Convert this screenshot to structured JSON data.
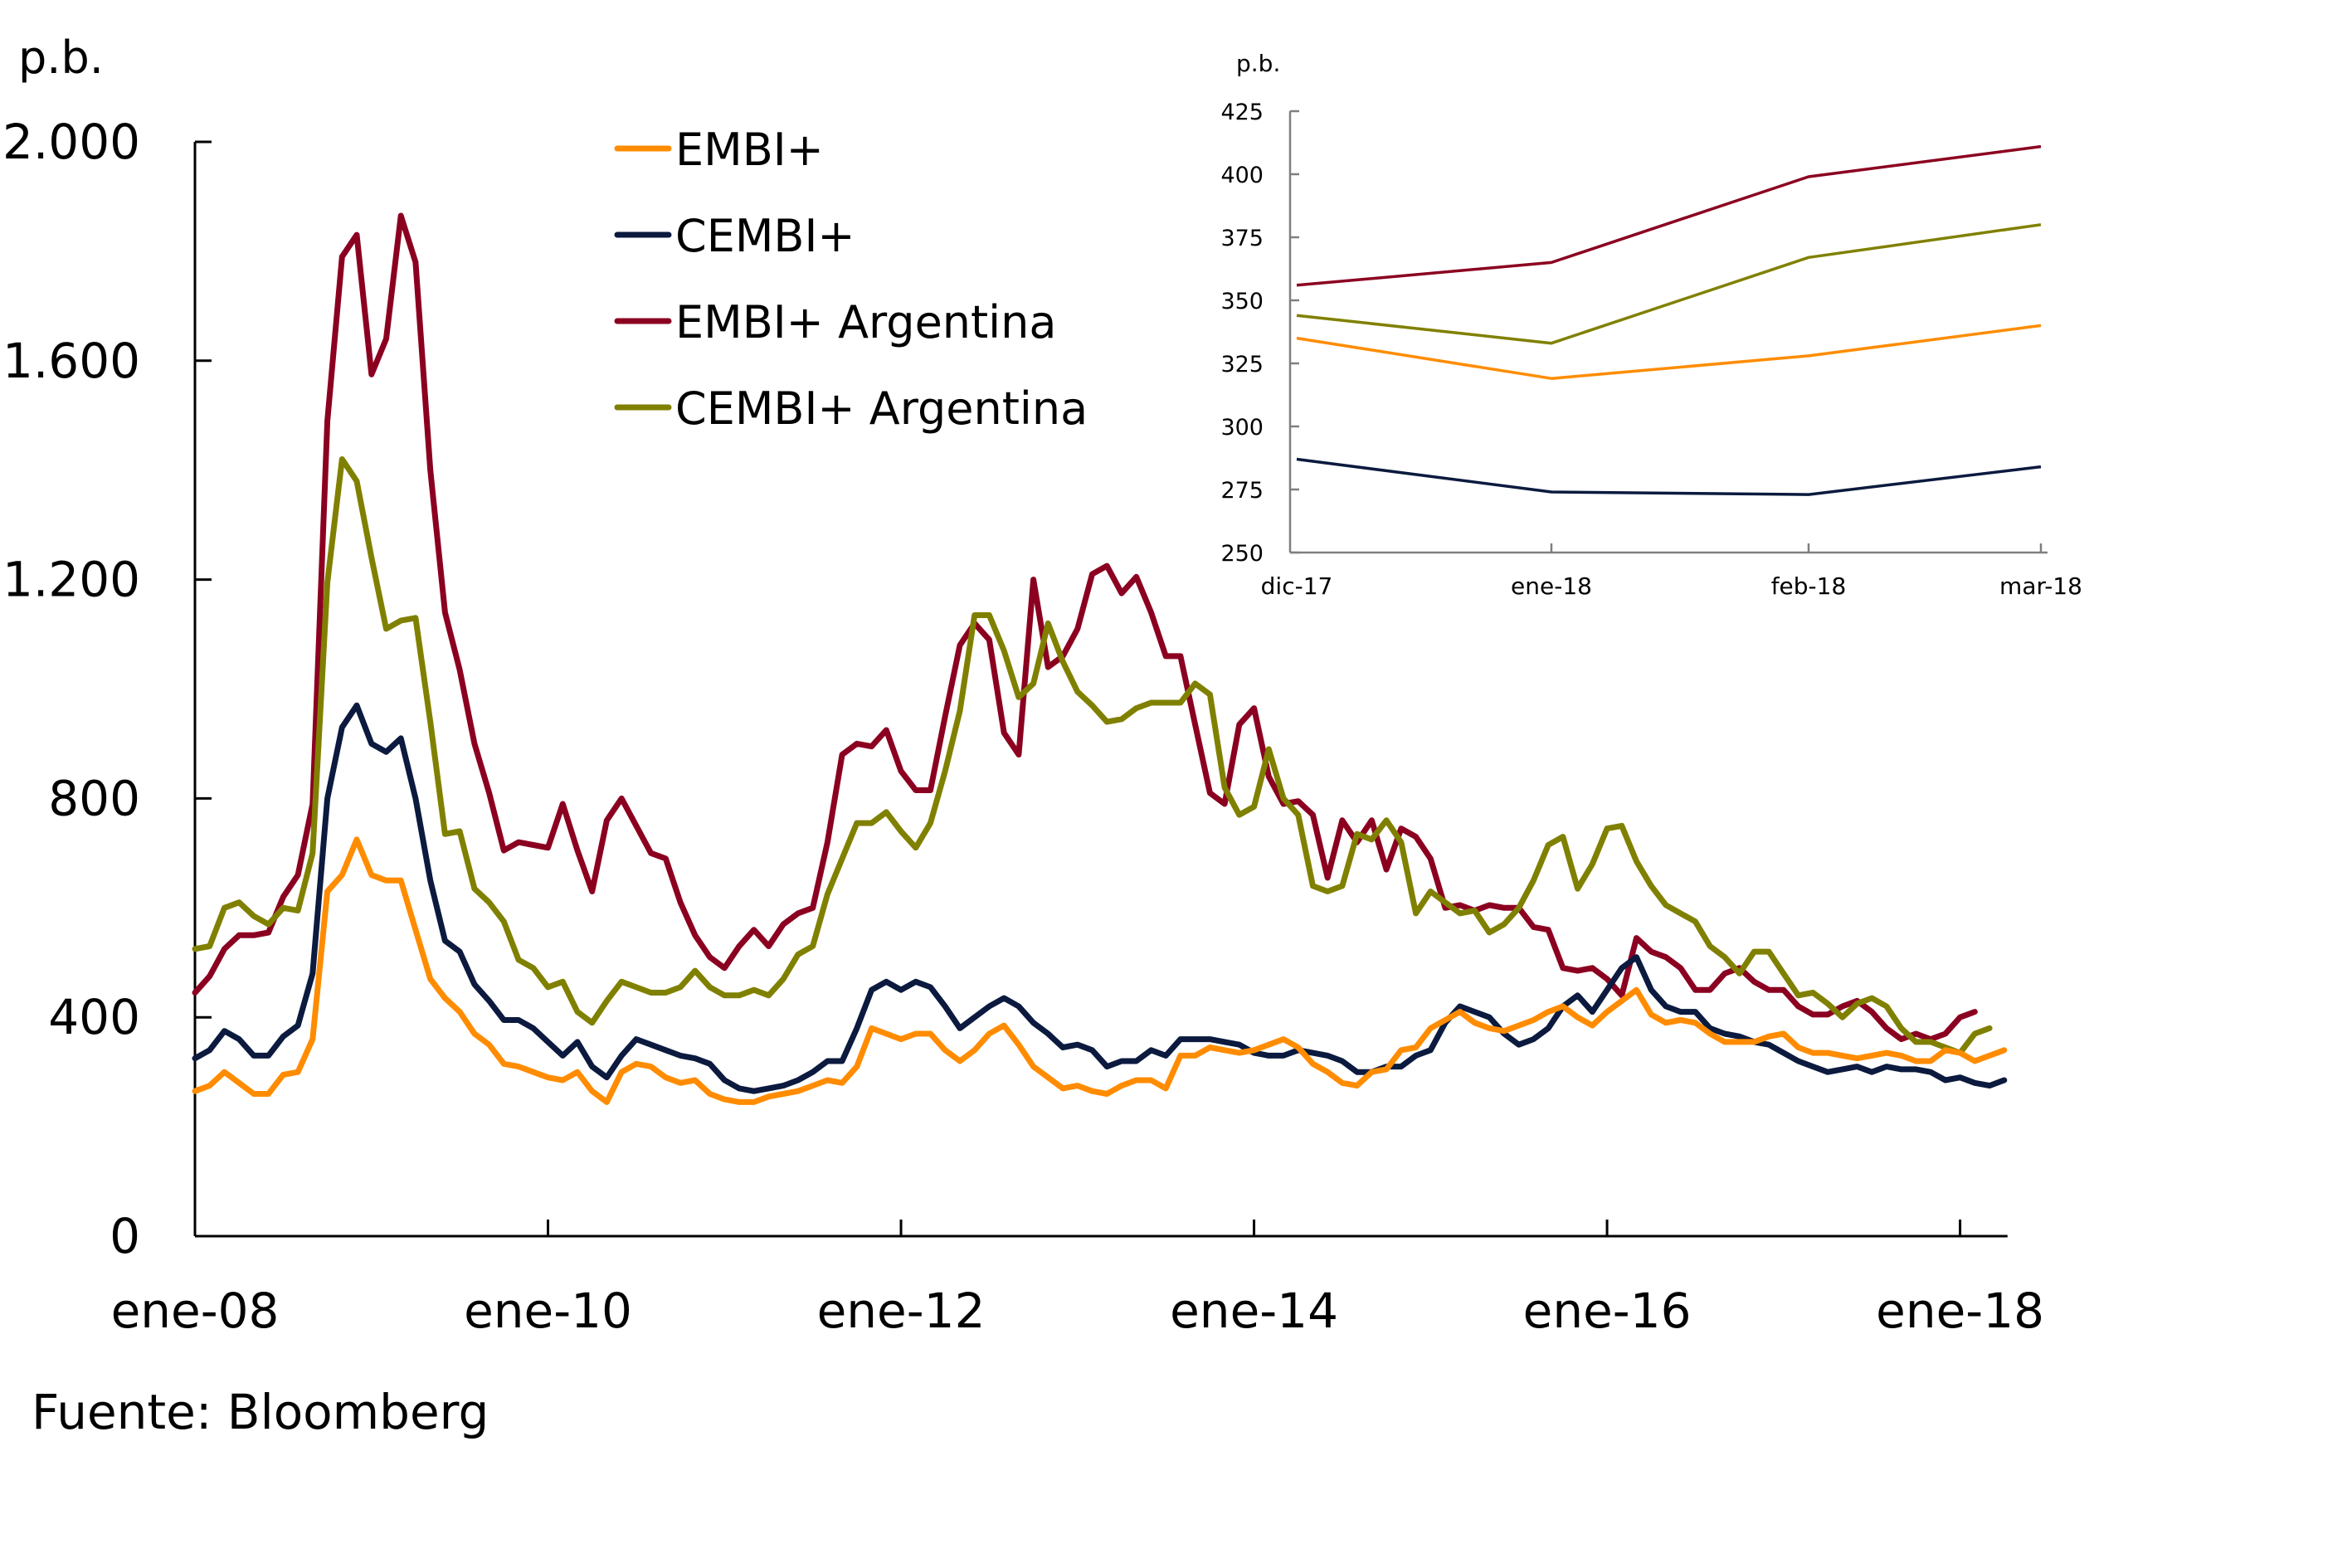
{
  "chart_data": [
    {
      "type": "line",
      "title": "",
      "ylabel": "p.b.",
      "xlabel": "",
      "ylim": [
        0,
        2000
      ],
      "yticks": [
        0,
        400,
        800,
        1200,
        1600,
        2000
      ],
      "ytick_labels": [
        "0",
        "400",
        "800",
        "1.200",
        "1.600",
        "2.000"
      ],
      "x_start": "ene-08",
      "x_end": "mar-18",
      "x_frequency": "monthly",
      "xtick_labels": [
        "ene-08",
        "ene-10",
        "ene-12",
        "ene-14",
        "ene-16",
        "ene-18"
      ],
      "xtick_month_index": [
        0,
        24,
        48,
        72,
        96,
        120
      ],
      "grid": false,
      "legend_position": "top-center",
      "series": [
        {
          "name": "EMBI+",
          "color": "#FF8C00",
          "values": [
            265,
            275,
            300,
            280,
            260,
            260,
            295,
            300,
            360,
            630,
            660,
            725,
            660,
            650,
            650,
            560,
            470,
            435,
            410,
            370,
            350,
            315,
            310,
            300,
            290,
            285,
            300,
            265,
            245,
            300,
            315,
            310,
            290,
            280,
            285,
            260,
            250,
            245,
            245,
            255,
            260,
            265,
            275,
            285,
            280,
            310,
            380,
            370,
            360,
            370,
            370,
            340,
            320,
            340,
            370,
            385,
            350,
            310,
            290,
            270,
            275,
            265,
            260,
            275,
            285,
            285,
            270,
            330,
            330,
            345,
            340,
            335
          ],
          "values_cont": [
            340,
            350,
            360,
            345,
            315,
            300,
            280,
            275,
            300,
            305,
            340,
            345,
            380,
            395,
            410,
            390,
            380,
            375,
            385,
            395,
            410,
            420,
            400,
            385,
            410,
            430,
            450,
            405,
            390,
            395,
            390,
            370,
            355,
            355,
            355,
            365,
            370,
            345,
            335,
            335,
            330,
            325,
            330,
            335,
            330,
            320,
            320,
            340,
            335,
            320,
            330,
            340
          ]
        },
        {
          "name": "CEMBI+",
          "color": "#0B1A3E",
          "values": [
            325,
            340,
            375,
            360,
            330,
            330,
            365,
            385,
            480,
            800,
            930,
            970,
            900,
            885,
            910,
            800,
            650,
            540,
            520,
            460,
            430,
            395,
            395,
            380,
            355,
            330,
            355,
            310,
            290,
            330,
            360,
            350,
            340,
            330,
            325,
            315,
            285,
            270,
            265,
            270,
            275,
            285,
            300,
            320,
            320,
            380,
            450,
            465,
            450,
            465,
            455,
            420,
            380,
            400,
            420,
            435,
            420,
            390,
            370,
            345,
            350,
            340,
            310,
            320,
            320,
            340,
            330,
            360,
            360,
            360,
            355,
            350
          ],
          "values_cont": [
            335,
            330,
            330,
            340,
            335,
            330,
            320,
            300,
            300,
            310,
            310,
            330,
            340,
            390,
            420,
            410,
            400,
            370,
            350,
            360,
            380,
            420,
            440,
            410,
            450,
            490,
            510,
            450,
            420,
            410,
            410,
            380,
            370,
            365,
            355,
            350,
            335,
            320,
            310,
            300,
            305,
            310,
            300,
            310,
            305,
            305,
            300,
            285,
            290,
            280,
            275,
            285
          ]
        },
        {
          "name": "EMBI+ Argentina",
          "color": "#8B0020",
          "values": [
            445,
            475,
            525,
            550,
            550,
            555,
            620,
            660,
            790,
            1490,
            1790,
            1830,
            1575,
            1640,
            1865,
            1780,
            1400,
            1140,
            1035,
            900,
            810,
            705,
            720,
            715,
            710,
            790,
            705,
            630,
            760,
            800,
            750,
            700,
            690,
            610,
            550,
            510,
            490,
            530,
            560,
            530,
            570,
            590,
            600,
            720,
            880,
            900,
            895,
            925,
            850,
            815,
            815,
            950,
            1080,
            1120,
            1090,
            920,
            880,
            1200,
            1040,
            1060,
            1110,
            1210,
            1225,
            1175,
            1205,
            1140,
            1060,
            1060,
            935,
            810,
            790,
            935
          ],
          "values_cont": [
            965,
            840,
            790,
            795,
            770,
            655,
            760,
            720,
            760,
            670,
            745,
            730,
            690,
            600,
            605,
            595,
            605,
            600,
            600,
            565,
            560,
            490,
            485,
            490,
            470,
            440,
            545,
            520,
            510,
            490,
            450,
            450,
            480,
            490,
            465,
            450,
            450,
            420,
            405,
            405,
            420,
            430,
            410,
            380,
            360,
            370,
            360,
            370,
            400,
            410
          ]
        },
        {
          "name": "CEMBI+ Argentina",
          "color": "#808000",
          "values": [
            525,
            530,
            600,
            610,
            585,
            570,
            600,
            595,
            700,
            1195,
            1420,
            1380,
            1240,
            1110,
            1125,
            1130,
            940,
            735,
            740,
            635,
            610,
            575,
            505,
            490,
            455,
            465,
            410,
            390,
            430,
            465,
            455,
            445,
            445,
            455,
            485,
            455,
            440,
            440,
            450,
            440,
            470,
            515,
            530,
            625,
            690,
            755,
            755,
            775,
            740,
            710,
            755,
            850,
            960,
            1135,
            1135,
            1070,
            985,
            1010,
            1120,
            1050,
            995,
            970,
            940,
            945,
            965,
            975,
            975,
            975,
            1010,
            990,
            820,
            770
          ],
          "values_cont": [
            785,
            890,
            800,
            770,
            640,
            630,
            640,
            735,
            725,
            760,
            720,
            590,
            630,
            610,
            590,
            595,
            555,
            570,
            600,
            650,
            715,
            730,
            635,
            680,
            745,
            750,
            685,
            640,
            605,
            590,
            575,
            530,
            510,
            480,
            520,
            520,
            480,
            440,
            445,
            425,
            400,
            425,
            435,
            420,
            380,
            355,
            355,
            345,
            335,
            370,
            380
          ]
        }
      ],
      "inset": {
        "type": "line",
        "ylabel": "p.b.",
        "ylim": [
          250,
          425
        ],
        "yticks": [
          250,
          275,
          300,
          325,
          350,
          375,
          400,
          425
        ],
        "categories": [
          "dic-17",
          "ene-18",
          "feb-18",
          "mar-18"
        ],
        "grid": false,
        "series": [
          {
            "name": "EMBI+",
            "color": "#FF8C00",
            "values": [
              335,
              319,
              328,
              340
            ]
          },
          {
            "name": "CEMBI+",
            "color": "#0B1A3E",
            "values": [
              287,
              274,
              273,
              284
            ]
          },
          {
            "name": "EMBI+ Argentina",
            "color": "#8B0020",
            "values": [
              356,
              365,
              399,
              411
            ]
          },
          {
            "name": "CEMBI+ Argentina",
            "color": "#808000",
            "values": [
              344,
              333,
              367,
              380
            ]
          }
        ]
      }
    }
  ],
  "labels": {
    "unit": "p.b.",
    "inset_unit": "p.b.",
    "source": "Fuente:  Bloomberg"
  }
}
